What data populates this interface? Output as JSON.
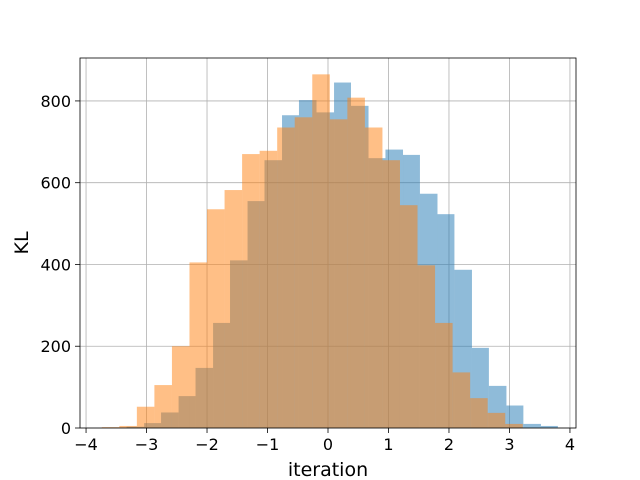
{
  "chart_data": {
    "type": "bar",
    "subtype": "overlapping-histogram",
    "title": "",
    "xlabel": "iteration",
    "ylabel": "KL",
    "xlim": [
      -4.1,
      4.1
    ],
    "ylim": [
      0,
      905
    ],
    "xticks": [
      -4,
      -3,
      -2,
      -1,
      0,
      1,
      2,
      3,
      4
    ],
    "xtick_labels": [
      "−4",
      "−3",
      "−2",
      "−1",
      "0",
      "1",
      "2",
      "3",
      "4"
    ],
    "yticks": [
      0,
      200,
      400,
      600,
      800
    ],
    "ytick_labels": [
      "0",
      "200",
      "400",
      "600",
      "800"
    ],
    "grid": true,
    "legend": "none",
    "colors": {
      "series_0": "#1f77b4",
      "series_1": "#ff7f0e",
      "opacity": 0.5
    },
    "series": [
      {
        "color": "#1f77b4",
        "bin_edges": [
          -3.61,
          -3.33,
          -3.04,
          -2.76,
          -2.47,
          -2.19,
          -1.9,
          -1.62,
          -1.33,
          -1.05,
          -0.76,
          -0.48,
          -0.19,
          0.1,
          0.38,
          0.67,
          0.95,
          1.24,
          1.52,
          1.81,
          2.09,
          2.38,
          2.66,
          2.95,
          3.23,
          3.52,
          3.8
        ],
        "counts": [
          1,
          3,
          12,
          38,
          78,
          147,
          257,
          410,
          555,
          655,
          765,
          802,
          772,
          845,
          788,
          660,
          681,
          668,
          573,
          523,
          387,
          196,
          103,
          55,
          10,
          5
        ]
      },
      {
        "color": "#ff7f0e",
        "bin_edges": [
          -3.74,
          -3.45,
          -3.16,
          -2.87,
          -2.58,
          -2.29,
          -2.0,
          -1.71,
          -1.42,
          -1.13,
          -0.84,
          -0.55,
          -0.26,
          0.03,
          0.32,
          0.61,
          0.9,
          1.19,
          1.48,
          1.77,
          2.06,
          2.35,
          2.64,
          2.93,
          3.22
        ],
        "counts": [
          2,
          5,
          52,
          105,
          200,
          405,
          535,
          582,
          670,
          678,
          735,
          760,
          865,
          755,
          808,
          735,
          655,
          545,
          398,
          257,
          136,
          73,
          37,
          10
        ]
      }
    ]
  }
}
